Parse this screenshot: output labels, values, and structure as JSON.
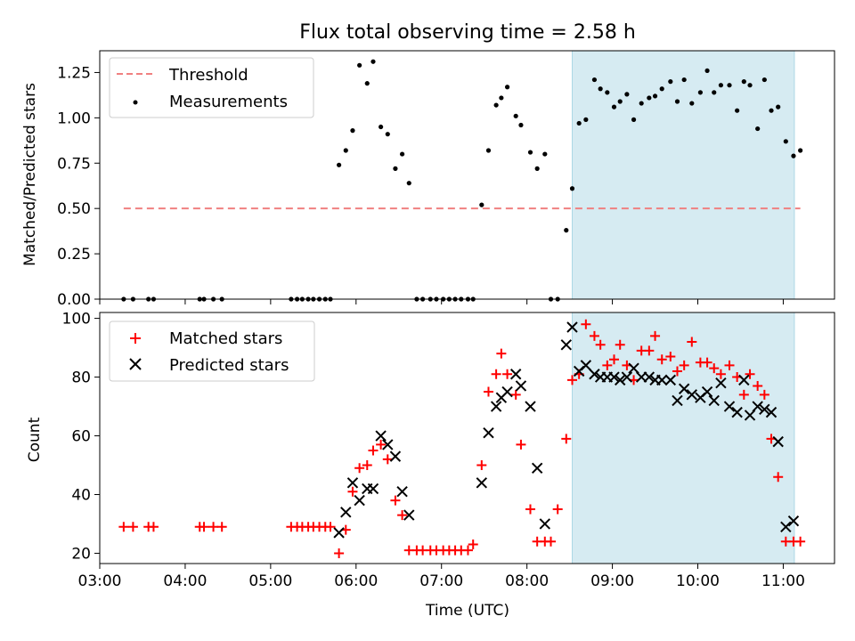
{
  "title": "Flux total observing time = 2.58 h",
  "colors": {
    "threshold": "#f08080",
    "measurement": "#000000",
    "matched": "#ff0000",
    "predicted": "#000000",
    "shade": "#add8e6"
  },
  "chart_data": [
    {
      "type": "scatter",
      "ylabel": "Matched/Predicted stars",
      "ylim": [
        0,
        1.37
      ],
      "xlim": [
        3.0,
        11.6
      ],
      "yticks": [
        "0.00",
        "0.25",
        "0.50",
        "0.75",
        "1.00",
        "1.25"
      ],
      "shaded_interval": [
        8.53,
        11.13
      ],
      "legend": [
        "Threshold",
        "Measurements"
      ],
      "legend_position": "upper-left",
      "threshold": {
        "name": "Threshold",
        "x": [
          3.28,
          11.2
        ],
        "y": [
          0.5,
          0.5
        ]
      },
      "series": [
        {
          "name": "Measurements",
          "x": [
            3.28,
            3.39,
            3.57,
            3.63,
            4.17,
            4.22,
            4.33,
            4.43,
            5.24,
            5.31,
            5.37,
            5.44,
            5.5,
            5.57,
            5.64,
            5.7,
            5.8,
            5.88,
            5.96,
            6.04,
            6.13,
            6.2,
            6.29,
            6.37,
            6.46,
            6.54,
            6.62,
            6.71,
            6.78,
            6.87,
            6.94,
            7.02,
            7.09,
            7.16,
            7.23,
            7.31,
            7.37,
            7.47,
            7.55,
            7.64,
            7.7,
            7.77,
            7.87,
            7.93,
            8.04,
            8.12,
            8.21,
            8.28,
            8.36,
            8.46,
            8.53,
            8.61,
            8.69,
            8.79,
            8.86,
            8.94,
            9.02,
            9.09,
            9.17,
            9.25,
            9.34,
            9.43,
            9.5,
            9.58,
            9.68,
            9.76,
            9.84,
            9.93,
            10.03,
            10.11,
            10.19,
            10.27,
            10.37,
            10.46,
            10.54,
            10.61,
            10.7,
            10.78,
            10.86,
            10.94,
            11.03,
            11.12,
            11.2
          ],
          "y": [
            0,
            0,
            0,
            0,
            0,
            0,
            0,
            0,
            0,
            0,
            0,
            0,
            0,
            0,
            0,
            0,
            0.74,
            0.82,
            0.93,
            1.29,
            1.19,
            1.31,
            0.95,
            0.91,
            0.72,
            0.8,
            0.64,
            0,
            0,
            0,
            0,
            0,
            0,
            0,
            0,
            0,
            0,
            0.52,
            0.82,
            1.07,
            1.11,
            1.17,
            1.01,
            0.96,
            0.81,
            0.72,
            0.8,
            0,
            0,
            0.38,
            0.61,
            0.97,
            0.99,
            1.21,
            1.16,
            1.14,
            1.06,
            1.09,
            1.13,
            0.99,
            1.08,
            1.11,
            1.12,
            1.16,
            1.2,
            1.09,
            1.21,
            1.08,
            1.14,
            1.26,
            1.14,
            1.18,
            1.18,
            1.04,
            1.2,
            1.18,
            0.94,
            1.21,
            1.04,
            1.06,
            0.87,
            0.79,
            0.82
          ]
        }
      ]
    },
    {
      "type": "scatter",
      "ylabel": "Count",
      "xlabel": "Time (UTC)",
      "ylim": [
        16.5,
        102
      ],
      "xlim": [
        3.0,
        11.6
      ],
      "yticks": [
        "20",
        "40",
        "60",
        "80",
        "100"
      ],
      "xticks": [
        "03:00",
        "04:00",
        "05:00",
        "06:00",
        "07:00",
        "08:00",
        "09:00",
        "10:00",
        "11:00"
      ],
      "shaded_interval": [
        8.53,
        11.13
      ],
      "legend": [
        "Matched stars",
        "Predicted stars"
      ],
      "legend_position": "upper-left",
      "series": [
        {
          "name": "Matched stars",
          "x": [
            3.28,
            3.39,
            3.57,
            3.63,
            4.17,
            4.22,
            4.33,
            4.43,
            5.24,
            5.31,
            5.37,
            5.44,
            5.5,
            5.57,
            5.64,
            5.7,
            5.8,
            5.88,
            5.96,
            6.04,
            6.13,
            6.2,
            6.29,
            6.37,
            6.46,
            6.54,
            6.62,
            6.71,
            6.78,
            6.87,
            6.94,
            7.02,
            7.09,
            7.16,
            7.23,
            7.31,
            7.37,
            7.47,
            7.55,
            7.64,
            7.7,
            7.77,
            7.87,
            7.93,
            8.04,
            8.12,
            8.21,
            8.28,
            8.36,
            8.46,
            8.53,
            8.61,
            8.69,
            8.79,
            8.86,
            8.94,
            9.02,
            9.09,
            9.17,
            9.25,
            9.34,
            9.43,
            9.5,
            9.58,
            9.68,
            9.76,
            9.84,
            9.93,
            10.03,
            10.11,
            10.19,
            10.27,
            10.37,
            10.46,
            10.54,
            10.61,
            10.7,
            10.78,
            10.86,
            10.94,
            11.03,
            11.12,
            11.2
          ],
          "y": [
            29,
            29,
            29,
            29,
            29,
            29,
            29,
            29,
            29,
            29,
            29,
            29,
            29,
            29,
            29,
            29,
            20,
            28,
            41,
            49,
            50,
            55,
            57,
            52,
            38,
            33,
            21,
            21,
            21,
            21,
            21,
            21,
            21,
            21,
            21,
            21,
            23,
            50,
            75,
            81,
            88,
            81,
            74,
            57,
            35,
            24,
            24,
            24,
            35,
            59,
            79,
            81,
            98,
            94,
            91,
            84,
            86,
            91,
            84,
            79,
            89,
            89,
            94,
            86,
            87,
            82,
            84,
            92,
            85,
            85,
            83,
            81,
            84,
            80,
            74,
            81,
            77,
            74,
            59,
            46,
            24,
            24,
            24
          ]
        },
        {
          "name": "Predicted stars",
          "x": [
            5.8,
            5.88,
            5.96,
            6.04,
            6.13,
            6.2,
            6.29,
            6.37,
            6.46,
            6.54,
            6.62,
            7.47,
            7.55,
            7.64,
            7.7,
            7.77,
            7.87,
            7.93,
            8.04,
            8.12,
            8.21,
            8.46,
            8.53,
            8.61,
            8.69,
            8.79,
            8.86,
            8.94,
            9.02,
            9.09,
            9.17,
            9.25,
            9.34,
            9.43,
            9.5,
            9.58,
            9.68,
            9.76,
            9.84,
            9.93,
            10.03,
            10.11,
            10.19,
            10.27,
            10.37,
            10.46,
            10.54,
            10.61,
            10.7,
            10.78,
            10.86,
            10.94,
            11.03,
            11.12
          ],
          "y": [
            27,
            34,
            44,
            38,
            42,
            42,
            60,
            57,
            53,
            41,
            33,
            44,
            61,
            70,
            73,
            75,
            81,
            77,
            70,
            49,
            30,
            91,
            97,
            82,
            84,
            81,
            80,
            80,
            80,
            79,
            80,
            83,
            80,
            80,
            79,
            79,
            79,
            72,
            76,
            74,
            73,
            75,
            72,
            78,
            70,
            68,
            79,
            67,
            70,
            69,
            68,
            58,
            29,
            31
          ]
        }
      ]
    }
  ]
}
